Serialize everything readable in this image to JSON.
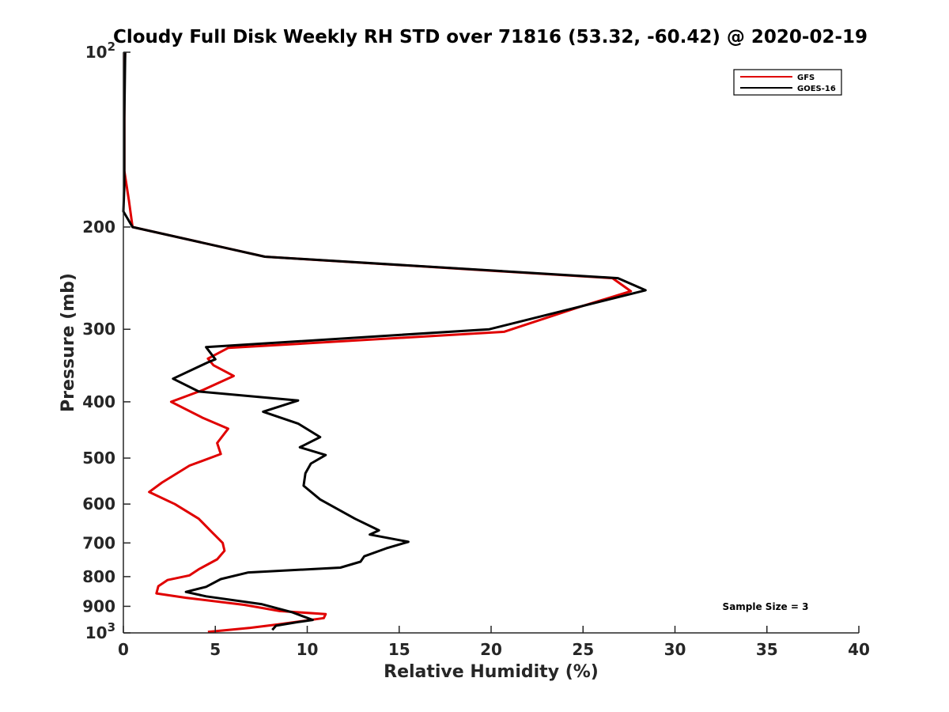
{
  "chart_data": {
    "type": "line",
    "title": "Cloudy Full Disk Weekly RH STD over 71816 (53.32, -60.42) @ 2020-02-19",
    "xlabel": "Relative Humidity (%)",
    "ylabel": "Pressure (mb)",
    "xlim": [
      0,
      40
    ],
    "ylim": [
      100,
      1000
    ],
    "yscale": "log",
    "y_reversed": true,
    "grid": false,
    "legend_position": "top-right",
    "x_ticks": [
      0,
      5,
      10,
      15,
      20,
      25,
      30,
      35,
      40
    ],
    "x_tick_labels": [
      "0",
      "5",
      "10",
      "15",
      "20",
      "25",
      "30",
      "35",
      "40"
    ],
    "y_ticks": [
      {
        "value": 100,
        "label": "10",
        "sup": "2"
      },
      {
        "value": 200,
        "label": "200",
        "sup": ""
      },
      {
        "value": 300,
        "label": "300",
        "sup": ""
      },
      {
        "value": 400,
        "label": "400",
        "sup": ""
      },
      {
        "value": 500,
        "label": "500",
        "sup": ""
      },
      {
        "value": 600,
        "label": "600",
        "sup": ""
      },
      {
        "value": 700,
        "label": "700",
        "sup": ""
      },
      {
        "value": 800,
        "label": "800",
        "sup": ""
      },
      {
        "value": 900,
        "label": "900",
        "sup": ""
      },
      {
        "value": 1000,
        "label": "10",
        "sup": "3"
      }
    ],
    "series": [
      {
        "name": "GFS",
        "color": "#e00000",
        "x": [
          0.1,
          0.05,
          0.05,
          0.05,
          0.3,
          0.5,
          7.7,
          26.6,
          27.6,
          24.9,
          20.7,
          5.7,
          4.6,
          4.9,
          6.0,
          4.3,
          2.6,
          4.3,
          5.7,
          5.1,
          5.3,
          3.6,
          2.1,
          1.4,
          2.8,
          4.1,
          4.8,
          5.4,
          5.5,
          5.1,
          4.1,
          3.6,
          2.4,
          1.9,
          1.8,
          3.4,
          6.6,
          8.5,
          11.0,
          10.9,
          8.5,
          6.9,
          4.6
        ],
        "y": [
          100,
          110,
          130,
          160,
          180,
          200,
          225,
          245,
          258,
          274,
          303,
          323,
          337,
          346,
          361,
          382,
          400,
          426,
          445,
          471,
          492,
          515,
          551,
          572,
          600,
          636,
          670,
          700,
          722,
          747,
          777,
          796,
          811,
          831,
          855,
          870,
          895,
          917,
          928,
          943,
          966,
          980,
          996
        ]
      },
      {
        "name": "GOES-16",
        "color": "#000000",
        "x": [
          0.1,
          0.05,
          0.05,
          0.0,
          0.5,
          7.7,
          26.9,
          28.4,
          19.9,
          4.5,
          5.0,
          4.6,
          2.7,
          4.1,
          9.5,
          7.6,
          9.5,
          10.7,
          9.6,
          11.0,
          10.2,
          9.9,
          9.8,
          10.7,
          12.6,
          13.9,
          13.4,
          15.5,
          14.3,
          13.1,
          12.9,
          11.8,
          6.8,
          5.3,
          4.5,
          3.4,
          4.5,
          7.5,
          9.2,
          10.3,
          9.5,
          8.3,
          8.1
        ],
        "y": [
          100,
          130,
          170,
          188,
          200,
          225,
          245,
          257,
          300,
          322,
          338,
          342,
          365,
          384,
          398,
          416,
          436,
          460,
          479,
          494,
          511,
          531,
          558,
          589,
          636,
          666,
          677,
          697,
          715,
          738,
          754,
          772,
          787,
          808,
          833,
          850,
          865,
          892,
          922,
          950,
          958,
          972,
          988
        ]
      }
    ],
    "annotation": "Sample Size = 3"
  }
}
